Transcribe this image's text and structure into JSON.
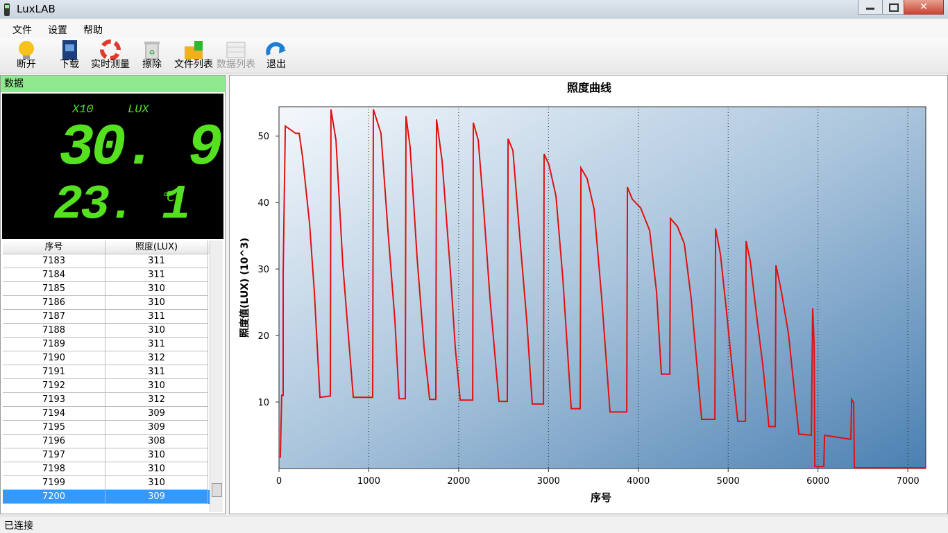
{
  "window": {
    "title": "LuxLAB"
  },
  "menu": [
    "文件",
    "设置",
    "帮助"
  ],
  "toolbar": [
    "断开",
    "下载",
    "实时测量",
    "擦除",
    "文件列表",
    "数据列表",
    "退出"
  ],
  "panel": {
    "title": "数据",
    "display": {
      "multiplier": "X10",
      "unit": "LUX",
      "lux": "30. 9",
      "temperature": "23. 1",
      "temperature_unit": "℃"
    }
  },
  "table": {
    "columns": [
      "序号",
      "照度(LUX)"
    ],
    "rows": [
      [
        7183,
        311
      ],
      [
        7184,
        311
      ],
      [
        7185,
        310
      ],
      [
        7186,
        310
      ],
      [
        7187,
        311
      ],
      [
        7188,
        310
      ],
      [
        7189,
        311
      ],
      [
        7190,
        312
      ],
      [
        7191,
        311
      ],
      [
        7192,
        310
      ],
      [
        7193,
        312
      ],
      [
        7194,
        309
      ],
      [
        7195,
        309
      ],
      [
        7196,
        308
      ],
      [
        7197,
        310
      ],
      [
        7198,
        310
      ],
      [
        7199,
        310
      ],
      [
        7200,
        309
      ]
    ]
  },
  "status": "已连接",
  "chart_data": {
    "type": "line",
    "title": "照度曲线",
    "x_label": "序号",
    "y_label": "照度值(LUX)  (10^3)",
    "color": "#e01010",
    "grid": true,
    "xlim": [
      0,
      7200
    ],
    "ylim": [
      0,
      54.4
    ],
    "xticks": [
      0,
      1000,
      2000,
      3000,
      4000,
      5000,
      6000,
      7000
    ],
    "yticks": [
      10,
      20,
      30,
      40,
      50
    ],
    "x": [
      15,
      30,
      46,
      46,
      70,
      185,
      225,
      263,
      340,
      394,
      456,
      572,
      579,
      634,
      711,
      765,
      827,
      1043,
      1051,
      1136,
      1213,
      1290,
      1337,
      1406,
      1414,
      1460,
      1537,
      1615,
      1677,
      1746,
      1754,
      1816,
      1908,
      1962,
      2017,
      2156,
      2163,
      2218,
      2279,
      2349,
      2449,
      2542,
      2550,
      2604,
      2681,
      2758,
      2820,
      2944,
      2951,
      3005,
      3083,
      3160,
      3253,
      3353,
      3361,
      3430,
      3508,
      3593,
      3685,
      3871,
      3879,
      3933,
      4026,
      4126,
      4203,
      4257,
      4350,
      4358,
      4435,
      4512,
      4589,
      4705,
      4852,
      4860,
      4914,
      4976,
      5030,
      5107,
      5192,
      5200,
      5246,
      5323,
      5385,
      5455,
      5524,
      5532,
      5594,
      5671,
      5787,
      5926,
      5941,
      5957,
      5965,
      6065,
      6073,
      6366,
      6374,
      6397,
      6405,
      7200
    ],
    "values": [
      1.6,
      11,
      11,
      29,
      51.5,
      50.4,
      50.4,
      46.8,
      36.9,
      26.5,
      10.7,
      10.9,
      54,
      49.4,
      30.6,
      21.3,
      10.7,
      10.7,
      54,
      50.4,
      35.8,
      22.3,
      10.5,
      10.5,
      53,
      48.3,
      31.7,
      18.2,
      10.4,
      10.4,
      52.5,
      46.2,
      29.6,
      18.2,
      10.3,
      10.3,
      52,
      49.4,
      39,
      25.5,
      10.1,
      10.1,
      49.6,
      47.8,
      34.8,
      22.3,
      9.7,
      9.7,
      47.3,
      45.7,
      41,
      28.6,
      9,
      9,
      45.2,
      43.6,
      39,
      25.5,
      8.5,
      8.5,
      42.3,
      40.5,
      39.2,
      35.8,
      26.5,
      14.2,
      14.2,
      37.6,
      36.4,
      33.8,
      25.5,
      7.4,
      7.4,
      36.1,
      32.2,
      24.4,
      17.1,
      7.1,
      7.1,
      34.2,
      31.2,
      22.3,
      15.6,
      6.3,
      6.3,
      30.6,
      26.5,
      20.3,
      5.2,
      5,
      24.1,
      18.7,
      0.3,
      0.3,
      5,
      4.4,
      10.4,
      9.9,
      0.1,
      0.1
    ]
  }
}
